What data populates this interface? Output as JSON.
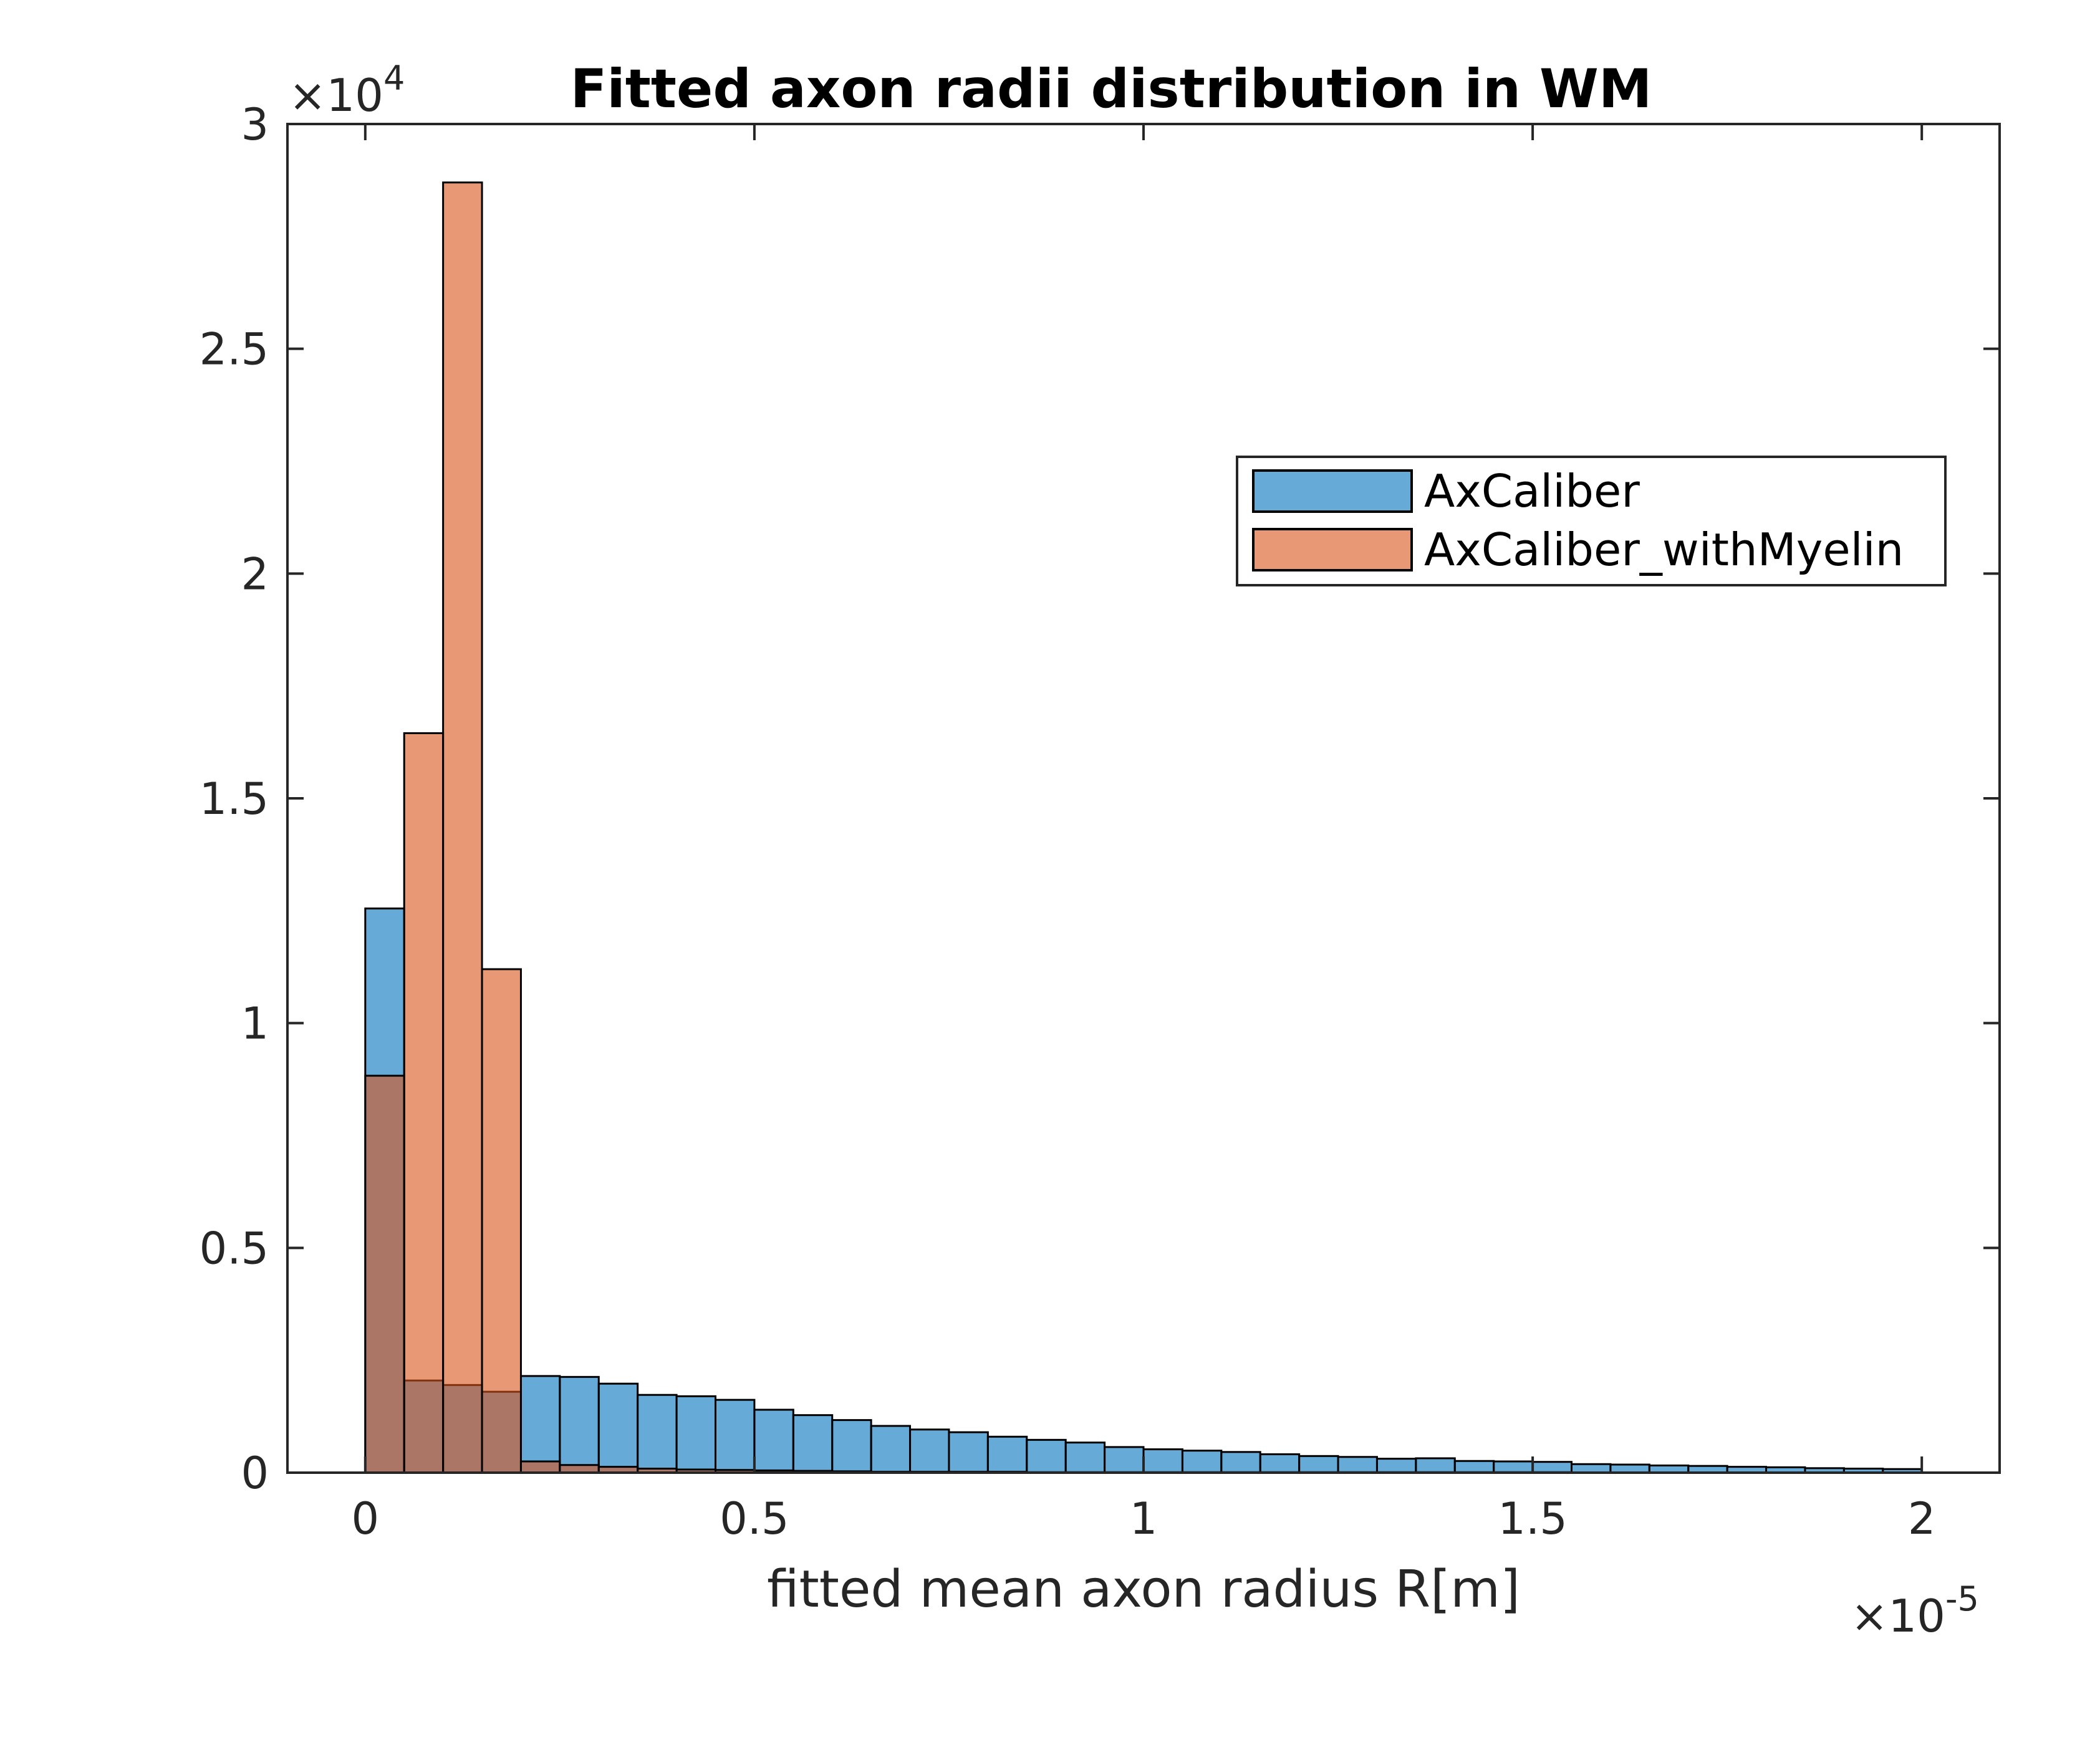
{
  "chart_data": {
    "type": "bar",
    "title": "Fitted axon radii distribution in WM",
    "xlabel": "fitted mean axon radius R[m]",
    "ylabel": "",
    "x_multiplier": "×10",
    "x_multiplier_exp": "-5",
    "y_multiplier": "×10",
    "y_multiplier_exp": "4",
    "xlim": [
      -0.1,
      2.1
    ],
    "ylim": [
      0,
      3
    ],
    "x_ticks": [
      0,
      0.5,
      1,
      1.5,
      2
    ],
    "x_tick_labels": [
      "0",
      "0.5",
      "1",
      "1.5",
      "2"
    ],
    "y_ticks": [
      0,
      0.5,
      1,
      1.5,
      2,
      2.5,
      3
    ],
    "y_tick_labels": [
      "0",
      "0.5",
      "1",
      "1.5",
      "2",
      "2.5",
      "3"
    ],
    "bin_width": 0.05,
    "bin_start": 0,
    "grid": false,
    "legend_position": "upper-right",
    "series": [
      {
        "name": "AxCaliber",
        "color": "#0072BD",
        "face_alpha": 0.6,
        "values": [
          1.255,
          0.205,
          0.195,
          0.18,
          0.215,
          0.213,
          0.198,
          0.173,
          0.17,
          0.162,
          0.14,
          0.128,
          0.117,
          0.104,
          0.096,
          0.09,
          0.08,
          0.073,
          0.067,
          0.057,
          0.052,
          0.049,
          0.046,
          0.041,
          0.037,
          0.035,
          0.031,
          0.032,
          0.026,
          0.025,
          0.024,
          0.019,
          0.018,
          0.016,
          0.015,
          0.013,
          0.012,
          0.01,
          0.009,
          0.008
        ]
      },
      {
        "name": "AxCaliber_withMyelin",
        "color": "#D95319",
        "face_alpha": 0.6,
        "values": [
          0.883,
          1.645,
          2.87,
          1.12,
          0.025,
          0.017,
          0.013,
          0.009,
          0.007,
          0.006,
          0.005,
          0.004,
          0.003,
          0.002,
          0.002,
          0.002,
          0.002,
          0.001,
          0.001,
          0.001,
          0.001,
          0.001,
          0.001,
          0.001,
          0.001,
          0.001,
          0.001,
          0.001,
          0.001,
          0.001,
          0.001,
          0.0,
          0.0,
          0.0,
          0.0,
          0.0,
          0.0,
          0.0,
          0.0,
          0.0
        ]
      }
    ]
  }
}
